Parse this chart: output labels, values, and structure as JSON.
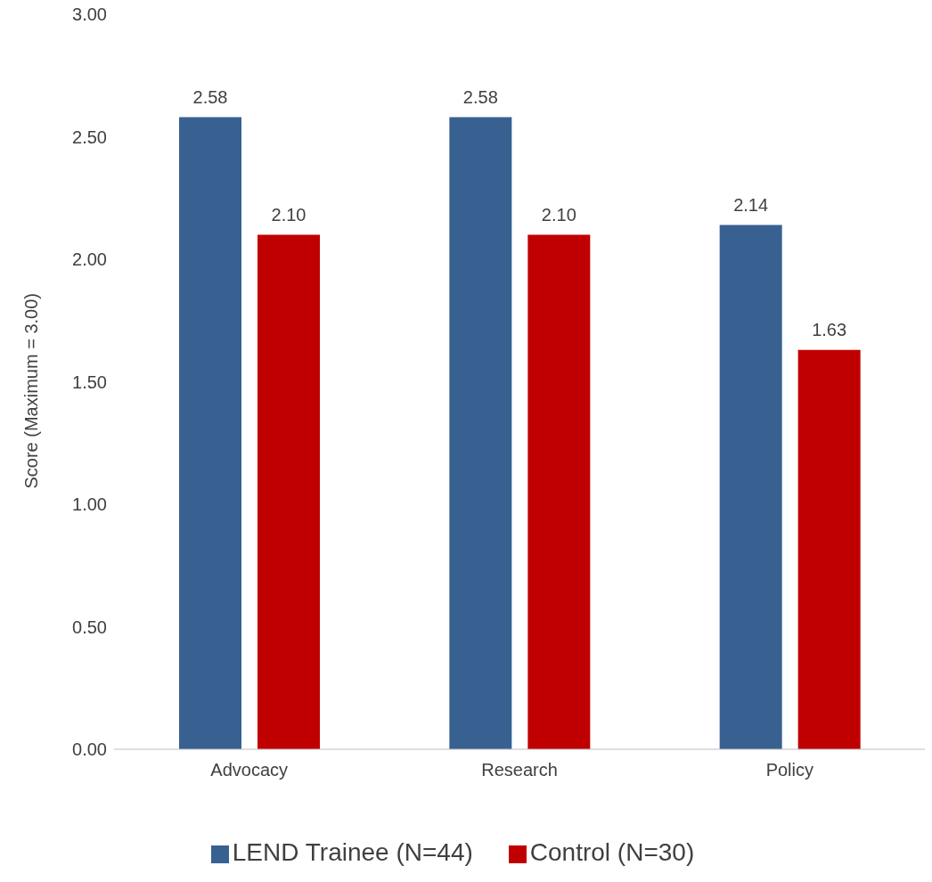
{
  "chart_data": {
    "type": "bar",
    "ylabel": "Score (Maximum = 3.00)",
    "categories": [
      "Advocacy",
      "Research",
      "Policy"
    ],
    "series": [
      {
        "name": "LEND Trainee (N=44)",
        "color": "#386192",
        "values": [
          2.58,
          2.58,
          2.14
        ],
        "value_labels": [
          "2.58",
          "2.58",
          "2.14"
        ]
      },
      {
        "name": "Control (N=30)",
        "color": "#c00000",
        "values": [
          2.1,
          2.1,
          1.63
        ],
        "value_labels": [
          "2.10",
          "2.10",
          "1.63"
        ]
      }
    ],
    "ylim": [
      0,
      3
    ],
    "yticks": [
      {
        "value": 0,
        "label": "0.00"
      },
      {
        "value": 0.5,
        "label": "0.50"
      },
      {
        "value": 1,
        "label": "1.00"
      },
      {
        "value": 1.5,
        "label": "1.50"
      },
      {
        "value": 2,
        "label": "2.00"
      },
      {
        "value": 2.5,
        "label": "2.50"
      },
      {
        "value": 3,
        "label": "3.00"
      }
    ],
    "grid": false,
    "legend": "bottom"
  }
}
